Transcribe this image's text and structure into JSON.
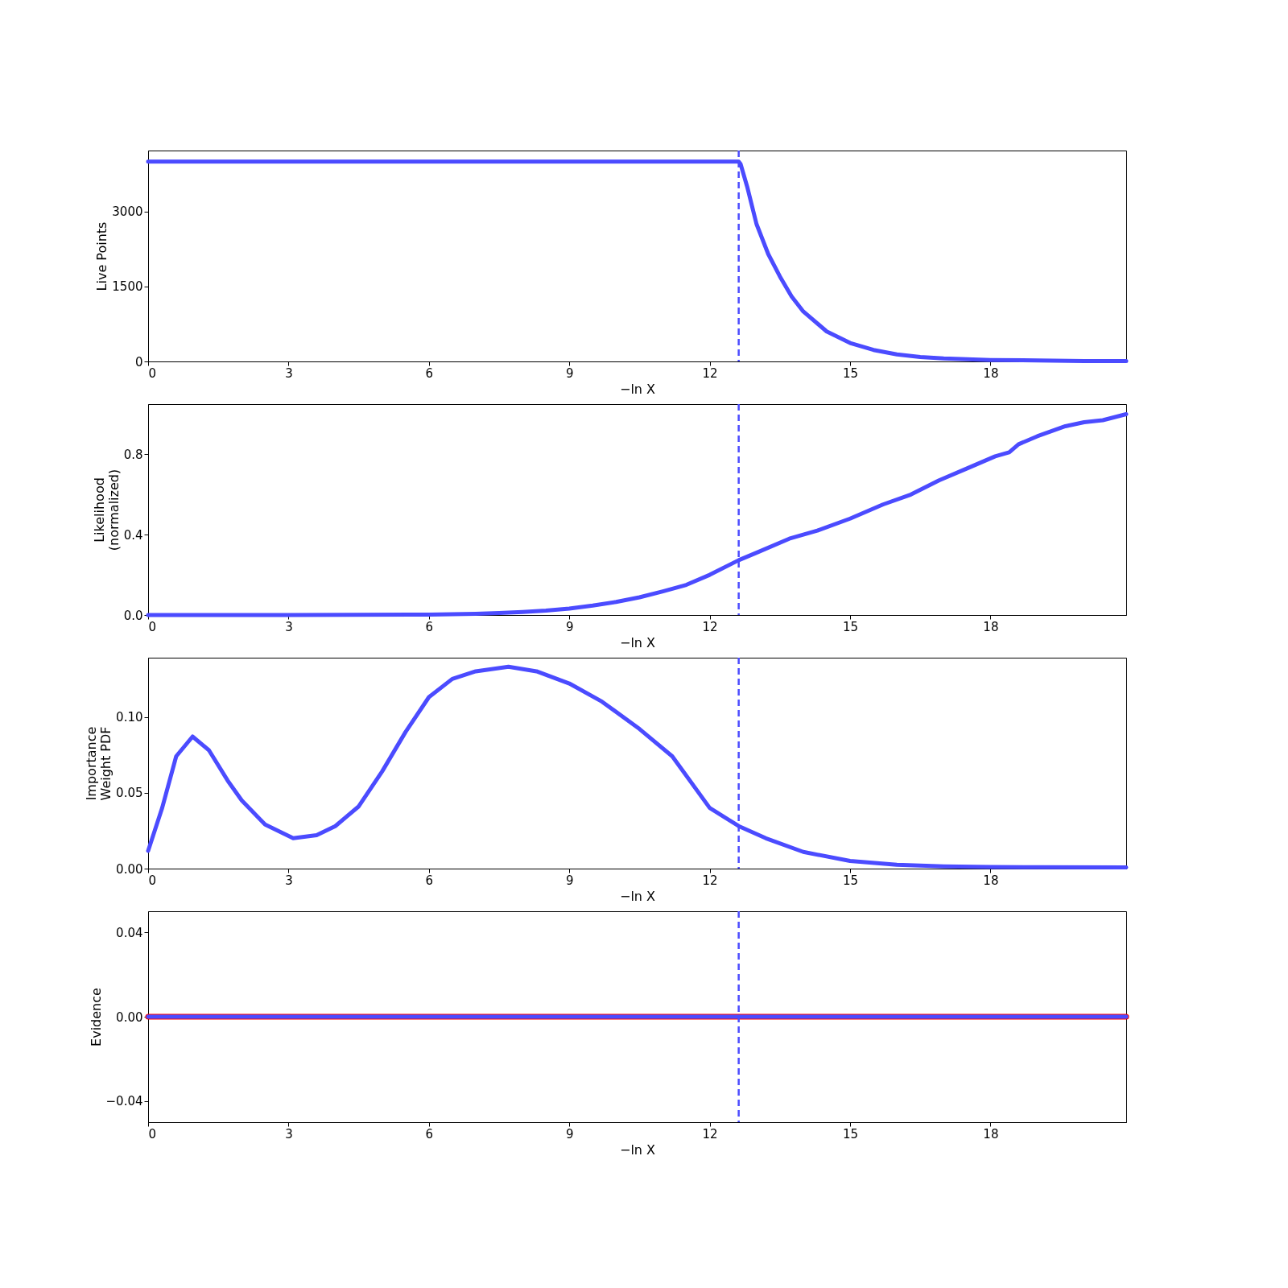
{
  "chart_data": [
    {
      "type": "line",
      "xlabel": "−ln X",
      "ylabel": "Live Points",
      "xlim": [
        0,
        20.9
      ],
      "xticks": [
        0,
        3,
        6,
        9,
        12,
        15,
        18
      ],
      "ylim": [
        0,
        4220
      ],
      "yticks": [
        0,
        1500,
        3000
      ],
      "series": [
        {
          "color": "#4b4bff",
          "x": [
            0,
            6,
            12.62,
            12.66,
            12.8,
            13,
            13.25,
            13.5,
            13.75,
            14,
            14.5,
            15,
            15.5,
            16,
            16.5,
            17,
            18,
            19,
            20,
            20.9
          ],
          "values": [
            4000,
            4000,
            4000,
            3950,
            3500,
            2750,
            2150,
            1700,
            1300,
            1000,
            600,
            370,
            230,
            140,
            90,
            60,
            30,
            20,
            10,
            10
          ]
        }
      ],
      "ref_lines": [
        {
          "axis": "x",
          "value": 12.62,
          "color": "#4b4bff",
          "line_style": "dashed"
        }
      ]
    },
    {
      "type": "line",
      "xlabel": "−ln X",
      "ylabel": "Likelihood\n(normalized)",
      "xlim": [
        0,
        20.9
      ],
      "xticks": [
        0,
        3,
        6,
        9,
        12,
        15,
        18
      ],
      "ylim": [
        0,
        1.05
      ],
      "yticks": [
        {
          "value": 0,
          "label": "0.0"
        },
        0.4,
        0.8
      ],
      "series": [
        {
          "color": "#4b4bff",
          "x": [
            0,
            3,
            6,
            7,
            7.5,
            8,
            8.5,
            9,
            9.5,
            10,
            10.5,
            11,
            11.5,
            12,
            12.62,
            13,
            13.7,
            14.3,
            15,
            15.7,
            16.3,
            16.9,
            17.5,
            18.1,
            18.4,
            18.6,
            19,
            19.6,
            20,
            20.4,
            20.9
          ],
          "values": [
            0,
            0,
            0.002,
            0.006,
            0.01,
            0.015,
            0.022,
            0.032,
            0.047,
            0.065,
            0.088,
            0.118,
            0.15,
            0.2,
            0.273,
            0.31,
            0.38,
            0.42,
            0.48,
            0.55,
            0.6,
            0.67,
            0.73,
            0.79,
            0.81,
            0.85,
            0.89,
            0.94,
            0.96,
            0.97,
            1.0
          ]
        }
      ],
      "ref_lines": [
        {
          "axis": "x",
          "value": 12.62,
          "color": "#4b4bff",
          "line_style": "dashed"
        }
      ]
    },
    {
      "type": "line",
      "xlabel": "−ln X",
      "ylabel": "Importance\nWeight PDF",
      "xlim": [
        0,
        20.9
      ],
      "xticks": [
        0,
        3,
        6,
        9,
        12,
        15,
        18
      ],
      "ylim": [
        0,
        0.139
      ],
      "yticks": [
        {
          "value": 0,
          "label": "0.00"
        },
        0.05,
        {
          "value": 0.1,
          "label": "0.10"
        }
      ],
      "series": [
        {
          "color": "#4b4bff",
          "x": [
            0,
            0.3,
            0.6,
            0.95,
            1.3,
            1.7,
            2,
            2.5,
            3.1,
            3.6,
            4,
            4.5,
            5,
            5.5,
            6,
            6.5,
            7,
            7.7,
            8.3,
            9,
            9.7,
            10.5,
            11.2,
            12,
            12.62,
            13.2,
            14,
            15,
            16,
            17,
            18,
            19,
            20.9
          ],
          "values": [
            0.0117,
            0.04,
            0.074,
            0.087,
            0.078,
            0.058,
            0.045,
            0.029,
            0.02,
            0.022,
            0.028,
            0.041,
            0.064,
            0.09,
            0.113,
            0.125,
            0.13,
            0.133,
            0.13,
            0.122,
            0.11,
            0.092,
            0.074,
            0.04,
            0.028,
            0.02,
            0.011,
            0.005,
            0.0025,
            0.0015,
            0.001,
            0.0009,
            0.0008
          ]
        }
      ],
      "ref_lines": [
        {
          "axis": "x",
          "value": 12.62,
          "color": "#4b4bff",
          "line_style": "dashed"
        }
      ]
    },
    {
      "type": "line",
      "xlabel": "−ln X",
      "ylabel": "Evidence",
      "xlim": [
        0,
        20.9
      ],
      "xticks": [
        0,
        3,
        6,
        9,
        12,
        15,
        18
      ],
      "ylim": [
        -0.05,
        0.05
      ],
      "yticks": [
        {
          "value": -0.04,
          "label": "−0.04"
        },
        {
          "value": 0,
          "label": "0.00"
        },
        0.04
      ],
      "series": [
        {
          "color": "#ff0000",
          "x": [
            0,
            20.9
          ],
          "values": [
            0,
            0
          ]
        },
        {
          "color": "#4b4bff",
          "x": [
            0,
            20.9
          ],
          "values": [
            0,
            0
          ]
        }
      ],
      "ref_lines": [
        {
          "axis": "x",
          "value": 12.62,
          "color": "#4b4bff",
          "line_style": "dashed"
        }
      ]
    }
  ]
}
